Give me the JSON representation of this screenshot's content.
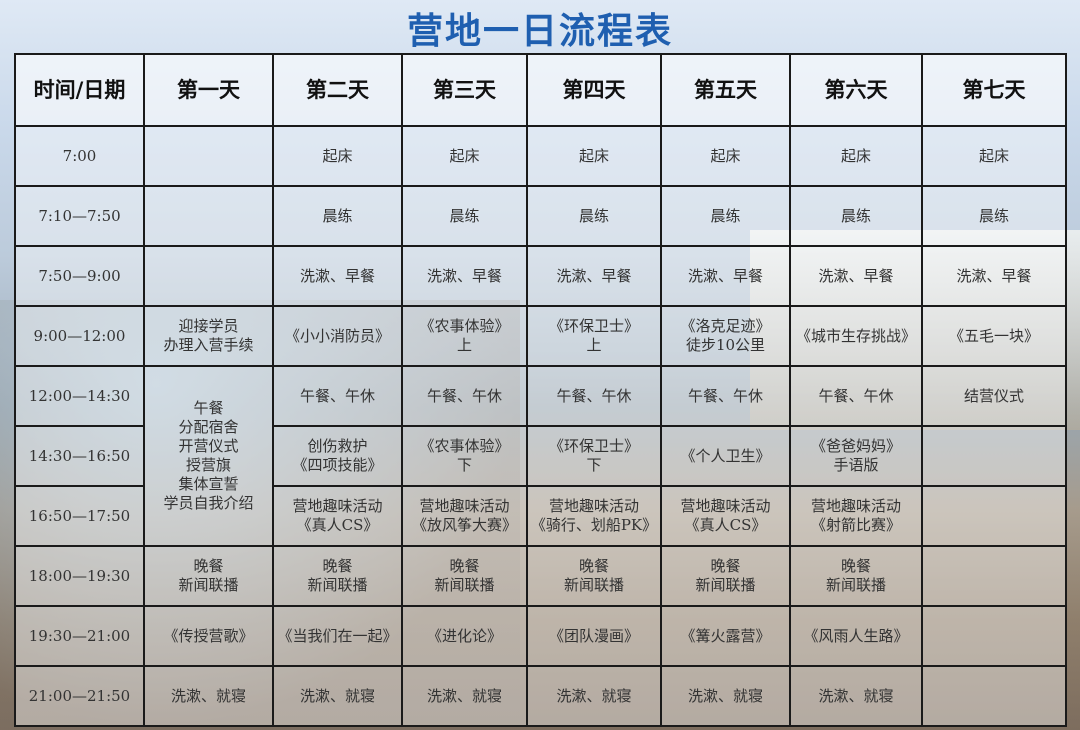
{
  "title": "营地一日流程表",
  "headers": [
    "时间/日期",
    "第一天",
    "第二天",
    "第三天",
    "第四天",
    "第五天",
    "第六天",
    "第七天"
  ],
  "rows": [
    {
      "time": "7:00",
      "cells": [
        {
          "text": ""
        },
        {
          "text": "起床"
        },
        {
          "text": "起床"
        },
        {
          "text": "起床"
        },
        {
          "text": "起床"
        },
        {
          "text": "起床"
        },
        {
          "text": "起床"
        }
      ]
    },
    {
      "time": "7:10—7:50",
      "cells": [
        {
          "text": ""
        },
        {
          "text": "晨练"
        },
        {
          "text": "晨练"
        },
        {
          "text": "晨练"
        },
        {
          "text": "晨练"
        },
        {
          "text": "晨练"
        },
        {
          "text": "晨练"
        }
      ]
    },
    {
      "time": "7:50—9:00",
      "cells": [
        {
          "text": ""
        },
        {
          "text": "洗漱、早餐"
        },
        {
          "text": "洗漱、早餐"
        },
        {
          "text": "洗漱、早餐"
        },
        {
          "text": "洗漱、早餐"
        },
        {
          "text": "洗漱、早餐"
        },
        {
          "text": "洗漱、早餐"
        }
      ]
    },
    {
      "time": "9:00—12:00",
      "cells": [
        {
          "text": "迎接学员\n办理入营手续"
        },
        {
          "text": "《小小消防员》"
        },
        {
          "text": "《农事体验》\n上"
        },
        {
          "text": "《环保卫士》\n上"
        },
        {
          "text": "《洛克足迹》\n徒步10公里"
        },
        {
          "text": "《城市生存挑战》"
        },
        {
          "text": "《五毛一块》"
        }
      ]
    },
    {
      "time": "12:00—14:30",
      "cells": [
        {
          "text": "午餐\n分配宿舍\n开营仪式\n授营旗\n集体宣誓\n学员自我介绍",
          "rowspan": 3
        },
        {
          "text": "午餐、午休"
        },
        {
          "text": "午餐、午休"
        },
        {
          "text": "午餐、午休"
        },
        {
          "text": "午餐、午休"
        },
        {
          "text": "午餐、午休"
        },
        {
          "text": "结营仪式"
        }
      ]
    },
    {
      "time": "14:30—16:50",
      "cells": [
        {
          "text": "创伤救护\n《四项技能》"
        },
        {
          "text": "《农事体验》\n下"
        },
        {
          "text": "《环保卫士》\n下"
        },
        {
          "text": "《个人卫生》"
        },
        {
          "text": "《爸爸妈妈》\n手语版"
        },
        {
          "text": ""
        }
      ]
    },
    {
      "time": "16:50—17:50",
      "cells": [
        {
          "text": "营地趣味活动\n《真人CS》"
        },
        {
          "text": "营地趣味活动\n《放风筝大赛》"
        },
        {
          "text": "营地趣味活动\n《骑行、划船PK》"
        },
        {
          "text": "营地趣味活动\n《真人CS》"
        },
        {
          "text": "营地趣味活动\n《射箭比赛》"
        },
        {
          "text": ""
        }
      ]
    },
    {
      "time": "18:00—19:30",
      "cells": [
        {
          "text": "晚餐\n新闻联播"
        },
        {
          "text": "晚餐\n新闻联播"
        },
        {
          "text": "晚餐\n新闻联播"
        },
        {
          "text": "晚餐\n新闻联播"
        },
        {
          "text": "晚餐\n新闻联播"
        },
        {
          "text": "晚餐\n新闻联播"
        },
        {
          "text": ""
        }
      ]
    },
    {
      "time": "19:30—21:00",
      "cells": [
        {
          "text": "《传授营歌》"
        },
        {
          "text": "《当我们在一起》"
        },
        {
          "text": "《进化论》"
        },
        {
          "text": "《团队漫画》"
        },
        {
          "text": "《篝火露营》"
        },
        {
          "text": "《风雨人生路》"
        },
        {
          "text": ""
        }
      ]
    },
    {
      "time": "21:00—21:50",
      "cells": [
        {
          "text": "洗漱、就寝"
        },
        {
          "text": "洗漱、就寝"
        },
        {
          "text": "洗漱、就寝"
        },
        {
          "text": "洗漱、就寝"
        },
        {
          "text": "洗漱、就寝"
        },
        {
          "text": "洗漱、就寝"
        },
        {
          "text": ""
        }
      ]
    }
  ]
}
